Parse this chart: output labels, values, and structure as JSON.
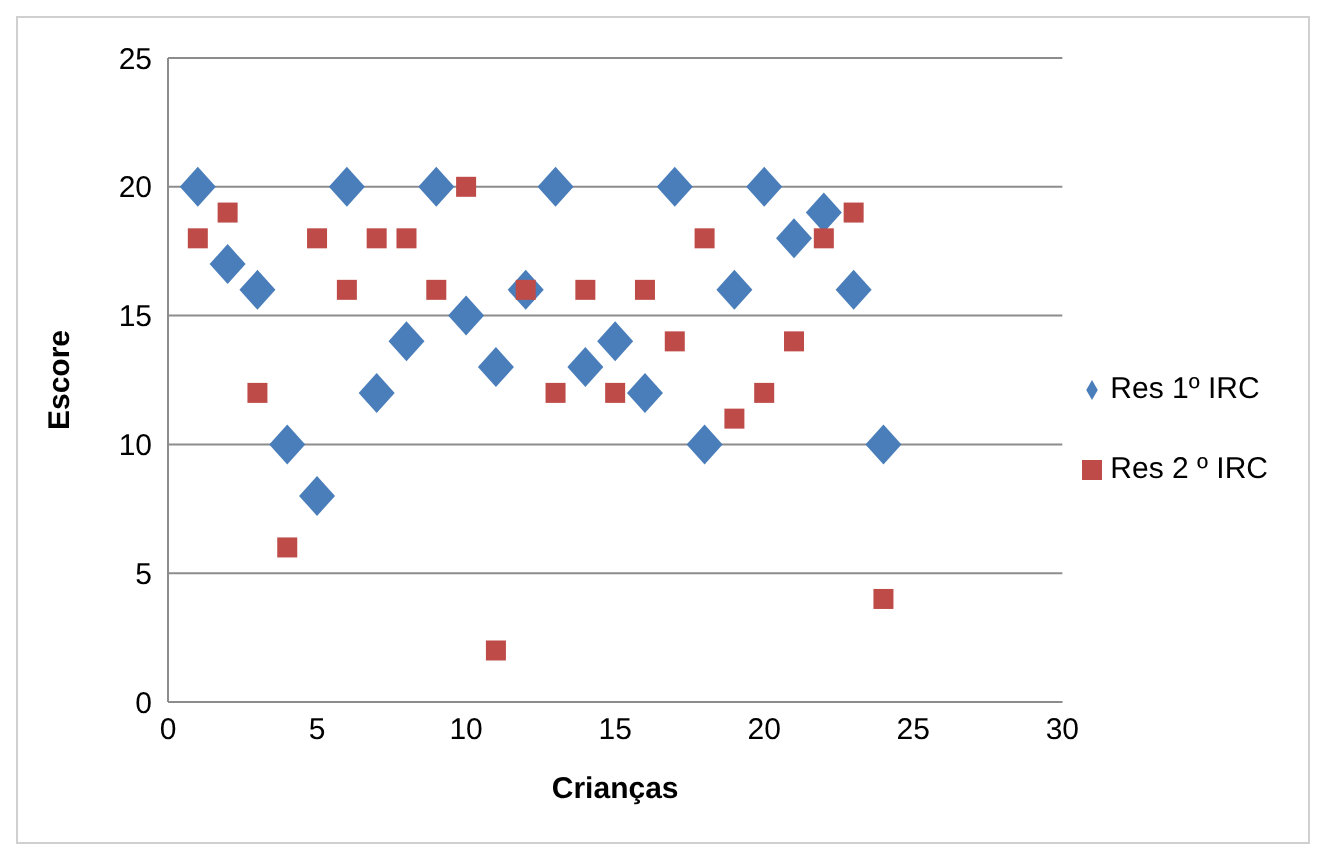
{
  "chart_data": {
    "type": "scatter",
    "xlabel": "Crianças",
    "ylabel": "Escore",
    "x": [
      1,
      2,
      3,
      4,
      5,
      6,
      7,
      8,
      9,
      10,
      11,
      12,
      13,
      14,
      15,
      16,
      17,
      18,
      19,
      20,
      21,
      22,
      23,
      24
    ],
    "series": [
      {
        "name": "Res 1º IRC",
        "color": "#4a7ebb",
        "marker": "diamond",
        "values": [
          20,
          17,
          16,
          10,
          8,
          20,
          12,
          14,
          20,
          15,
          13,
          16,
          20,
          13,
          14,
          12,
          20,
          10,
          16,
          20,
          18,
          19,
          16,
          10
        ]
      },
      {
        "name": "Res 2 º IRC",
        "color": "#be4b48",
        "marker": "square",
        "values": [
          18,
          19,
          12,
          6,
          18,
          16,
          18,
          18,
          16,
          20,
          2,
          16,
          12,
          16,
          12,
          16,
          14,
          18,
          11,
          12,
          14,
          18,
          19,
          4
        ]
      }
    ],
    "xlim": [
      0,
      30
    ],
    "xticks": [
      0,
      5,
      10,
      15,
      20,
      25,
      30
    ],
    "ylim": [
      0,
      25
    ],
    "yticks": [
      0,
      5,
      10,
      15,
      20,
      25
    ],
    "grid": "y",
    "legend": "right"
  }
}
